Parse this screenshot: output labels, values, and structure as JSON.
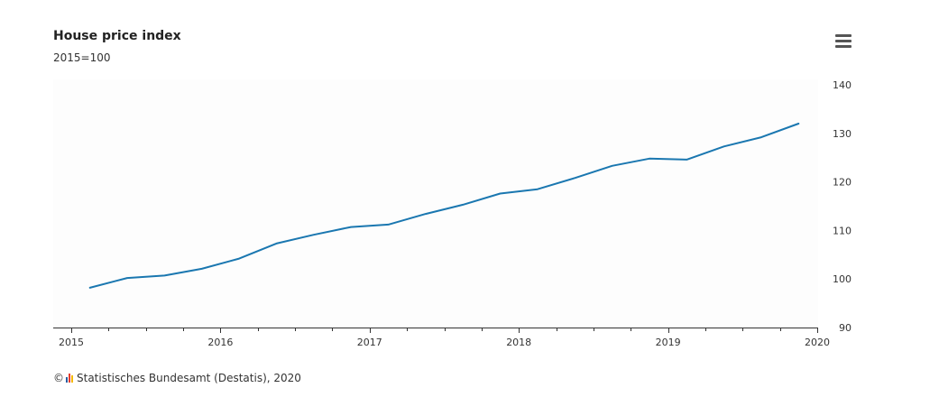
{
  "header": {
    "title": "House price index",
    "subtitle": "2015=100"
  },
  "menu": {
    "icon": "hamburger-menu-icon"
  },
  "credit": {
    "text": "Statistisches Bundesamt (Destatis), 2020"
  },
  "colors": {
    "series": "#1a77b0",
    "axis": "#333333",
    "logo_bars": [
      "#2a5d9f",
      "#e63b2e",
      "#f5b800"
    ]
  },
  "chart_data": {
    "type": "line",
    "title": "House price index",
    "subtitle": "2015=100",
    "xlabel": "",
    "ylabel": "",
    "xlim": [
      "2015-01-01",
      "2020-01-01"
    ],
    "ylim": [
      90,
      145
    ],
    "x_ticks": [
      "2015",
      "2016",
      "2017",
      "2018",
      "2019",
      "2020"
    ],
    "y_ticks": [
      90,
      100,
      110,
      120,
      130,
      140
    ],
    "y_axis_side": "right",
    "grid": false,
    "legend": "none",
    "series": [
      {
        "x": [
          "2015-Q1",
          "2015-Q2",
          "2015-Q3",
          "2015-Q4",
          "2016-Q1",
          "2016-Q2",
          "2016-Q3",
          "2016-Q4",
          "2017-Q1",
          "2017-Q2",
          "2017-Q3",
          "2017-Q4",
          "2018-Q1",
          "2018-Q2",
          "2018-Q3",
          "2018-Q4",
          "2019-Q1",
          "2019-Q2",
          "2019-Q3",
          "2019-Q4"
        ],
        "values": [
          98.2,
          100.2,
          100.7,
          102.1,
          104.2,
          107.3,
          109.1,
          110.7,
          111.2,
          113.4,
          115.3,
          117.6,
          118.5,
          120.8,
          123.3,
          124.8,
          124.6,
          127.3,
          129.2,
          132.0
        ]
      }
    ]
  }
}
